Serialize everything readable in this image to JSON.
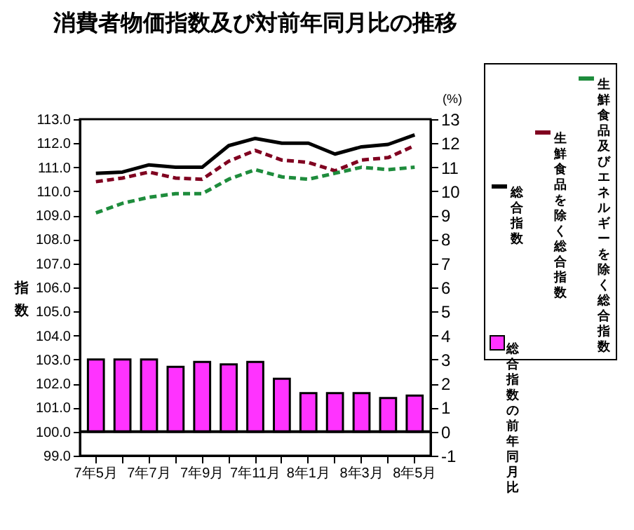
{
  "chart_data": {
    "type": "line",
    "title": "消費者物価指数及び対前年同月比の推移",
    "ylabel": "指数",
    "y2label": "(%)",
    "categories": [
      "7年5月",
      null,
      "7年7月",
      null,
      "7年9月",
      null,
      "7年11月",
      null,
      "8年1月",
      null,
      "8年3月",
      null,
      "8年5月"
    ],
    "series": [
      {
        "name": "総合指数",
        "color": "#000000",
        "line_style": "solid",
        "values": [
          110.75,
          110.8,
          111.1,
          111.0,
          111.0,
          111.9,
          112.2,
          112.0,
          112.0,
          111.55,
          111.85,
          111.95,
          112.35
        ]
      },
      {
        "name": "生鮮食品を除く総合指数",
        "color": "#800020",
        "line_style": "dashed",
        "values": [
          110.4,
          110.55,
          110.8,
          110.55,
          110.5,
          111.25,
          111.7,
          111.3,
          111.2,
          110.85,
          111.3,
          111.4,
          111.9
        ]
      },
      {
        "name": "生鮮食品及びエネルギーを除く総合指数",
        "color": "#1e8c3c",
        "line_style": "dashed",
        "values": [
          109.1,
          109.5,
          109.75,
          109.9,
          109.9,
          110.5,
          110.9,
          110.6,
          110.5,
          110.75,
          111.0,
          110.9,
          111.0
        ]
      },
      {
        "name": "総合指数の前年同月比",
        "type": "bar",
        "axis": "y2",
        "color": "#ff33ff",
        "values": [
          3.0,
          3.0,
          3.0,
          2.7,
          2.9,
          2.8,
          2.9,
          2.2,
          1.6,
          1.6,
          1.6,
          1.4,
          1.5
        ]
      }
    ],
    "ylim": [
      99,
      113
    ],
    "yticks": [
      {
        "value": 99,
        "label": "99.0"
      },
      {
        "value": 100,
        "label": "100.0"
      },
      {
        "value": 101,
        "label": "101.0"
      },
      {
        "value": 102,
        "label": "102.0"
      },
      {
        "value": 103,
        "label": "103.0"
      },
      {
        "value": 104,
        "label": "104.0"
      },
      {
        "value": 105,
        "label": "105.0"
      },
      {
        "value": 106,
        "label": "106.0"
      },
      {
        "value": 107,
        "label": "107.0"
      },
      {
        "value": 108,
        "label": "108.0"
      },
      {
        "value": 109,
        "label": "109.0"
      },
      {
        "value": 110,
        "label": "110.0"
      },
      {
        "value": 111,
        "label": "111.0"
      },
      {
        "value": 112,
        "label": "112.0"
      },
      {
        "value": 113,
        "label": "113.0"
      }
    ],
    "y2lim": [
      -1,
      13
    ],
    "y2ticks": [
      -1,
      0,
      1,
      2,
      3,
      4,
      5,
      6,
      7,
      8,
      9,
      10,
      11,
      12,
      13
    ],
    "ref_lines": [
      {
        "axis": "y2",
        "value": 0,
        "color": "#000000"
      }
    ],
    "grid": false,
    "legend": "right"
  }
}
